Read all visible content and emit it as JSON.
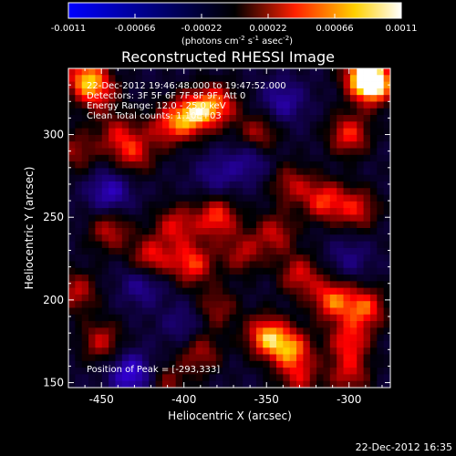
{
  "colorbar": {
    "ticks": [
      "-0.0011",
      "-0.00066",
      "-0.00022",
      "0.00022",
      "0.00066",
      "0.0011"
    ],
    "units_main": "(photons cm",
    "units_sup1": "-2",
    "units_mid": " s",
    "units_sup2": "-1",
    "units_end": " asec",
    "units_sup3": "-2",
    "units_close": ")"
  },
  "chart_data": {
    "type": "heatmap",
    "title": "Reconstructed RHESSI Image",
    "xlabel": "Heliocentric X (arcsec)",
    "ylabel": "Heliocentric Y (arcsec)",
    "xlim": [
      -470,
      -275
    ],
    "ylim": [
      147,
      340
    ],
    "xticks": [
      -450,
      -400,
      -350,
      -300
    ],
    "yticks": [
      150,
      200,
      250,
      300
    ],
    "color_range": [
      -0.0011,
      0.0011
    ],
    "colormap": [
      "#0000ff",
      "#000000",
      "#ff0000",
      "#ffff00",
      "#ffffff"
    ],
    "peak": [
      -293,
      333
    ],
    "sources": [
      {
        "x": -290,
        "y": 336,
        "v": 1.0
      },
      {
        "x": -285,
        "y": 330,
        "v": 0.9
      },
      {
        "x": -460,
        "y": 335,
        "v": 0.8
      },
      {
        "x": -452,
        "y": 325,
        "v": 0.55
      },
      {
        "x": -395,
        "y": 312,
        "v": 0.9
      },
      {
        "x": -380,
        "y": 318,
        "v": 0.75
      },
      {
        "x": -410,
        "y": 305,
        "v": 0.6
      },
      {
        "x": -355,
        "y": 300,
        "v": 0.55
      },
      {
        "x": -300,
        "y": 300,
        "v": 0.7
      },
      {
        "x": -440,
        "y": 300,
        "v": 0.5
      },
      {
        "x": -465,
        "y": 290,
        "v": 0.45
      },
      {
        "x": -430,
        "y": 288,
        "v": 0.55
      },
      {
        "x": -315,
        "y": 260,
        "v": 0.7
      },
      {
        "x": -295,
        "y": 255,
        "v": 0.6
      },
      {
        "x": -335,
        "y": 270,
        "v": 0.5
      },
      {
        "x": -380,
        "y": 250,
        "v": 0.75
      },
      {
        "x": -405,
        "y": 245,
        "v": 0.6
      },
      {
        "x": -345,
        "y": 240,
        "v": 0.55
      },
      {
        "x": -445,
        "y": 242,
        "v": 0.55
      },
      {
        "x": -420,
        "y": 225,
        "v": 0.7
      },
      {
        "x": -395,
        "y": 222,
        "v": 0.75
      },
      {
        "x": -365,
        "y": 228,
        "v": 0.5
      },
      {
        "x": -330,
        "y": 215,
        "v": 0.6
      },
      {
        "x": -310,
        "y": 200,
        "v": 0.8
      },
      {
        "x": -290,
        "y": 195,
        "v": 0.75
      },
      {
        "x": -465,
        "y": 205,
        "v": 0.55
      },
      {
        "x": -380,
        "y": 195,
        "v": 0.45
      },
      {
        "x": -350,
        "y": 178,
        "v": 0.9
      },
      {
        "x": -335,
        "y": 170,
        "v": 0.8
      },
      {
        "x": -300,
        "y": 175,
        "v": 0.65
      },
      {
        "x": -450,
        "y": 175,
        "v": 0.55
      },
      {
        "x": -390,
        "y": 168,
        "v": 0.5
      },
      {
        "x": -300,
        "y": 155,
        "v": 0.55
      },
      {
        "x": -330,
        "y": 152,
        "v": 0.5
      },
      {
        "x": -410,
        "y": 150,
        "v": 0.4
      },
      {
        "x": -445,
        "y": 265,
        "v": -0.55
      },
      {
        "x": -425,
        "y": 210,
        "v": -0.45
      },
      {
        "x": -432,
        "y": 155,
        "v": -0.7
      },
      {
        "x": -360,
        "y": 285,
        "v": -0.4
      },
      {
        "x": -340,
        "y": 320,
        "v": -0.45
      },
      {
        "x": -380,
        "y": 275,
        "v": -0.35
      },
      {
        "x": -300,
        "y": 225,
        "v": -0.3
      },
      {
        "x": -400,
        "y": 185,
        "v": -0.3
      }
    ]
  },
  "annotations": {
    "time_range": "22-Dec-2012 19:46:48.000 to 19:47:52.000",
    "detectors": "Detectors: 3F 5F 6F 7F 8F 9F, Att 0",
    "energy": "Energy Range: 12.0 - 25.0 keV",
    "clean": "Clean     Total counts: 1.10E+03",
    "peak": "Position of Peak = [-293,333]"
  },
  "footer": {
    "timestamp": "22-Dec-2012 16:35"
  }
}
